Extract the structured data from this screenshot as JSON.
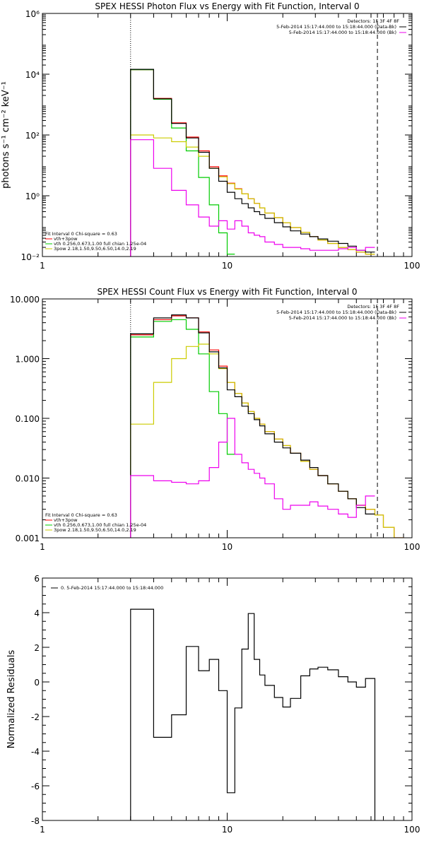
{
  "chart_data": [
    {
      "type": "line",
      "title": "SPEX HESSI Photon Flux vs Energy with Fit Function, Interval 0",
      "ylabel": "photons s⁻¹ cm⁻² keV⁻¹",
      "xlabel": "",
      "xscale": "log",
      "yscale": "log",
      "xlim": [
        1,
        100
      ],
      "ylim": [
        0.01,
        1000000
      ],
      "xticks": [
        1,
        10,
        100
      ],
      "xtick_labels": [
        "1",
        "10",
        "100"
      ],
      "yticks": [
        0.01,
        1,
        100,
        10000,
        1000000
      ],
      "ytick_labels": [
        "10⁻²",
        "10⁰",
        "10²",
        "10⁴",
        "10⁶"
      ],
      "vlines": [
        {
          "x": 3,
          "style": "dotted"
        },
        {
          "x": 65,
          "style": "dashed"
        }
      ],
      "legend_right": [
        "Detectors: 1F 3F 4F 8F",
        "5-Feb-2014 15:17:44.000 to 15:18:44.000 (Data-Bk)",
        "5-Feb-2014 15:17:44.000 to 15:18:44.000 (Bk)"
      ],
      "legend_left": [
        "Fit Interval 0   Chi-square = 0.63",
        "vth+3pow",
        "vth 0.256,0.673,1.00  full chian 1.25e-04",
        "3pow 2.18,1.50,9.50,6.50,14.0,2.19"
      ],
      "series": [
        {
          "name": "vth+3pow",
          "color": "#ff0000",
          "edges": [
            3,
            4,
            5,
            6,
            7,
            8,
            9,
            10,
            11,
            12,
            13,
            14,
            15,
            16,
            18,
            20,
            22,
            25,
            28,
            31,
            35,
            40,
            45,
            50,
            56,
            63
          ],
          "values": [
            14000,
            1600,
            250,
            85,
            30,
            9,
            4.5,
            2.6,
            1.7,
            1.15,
            0.8,
            0.56,
            0.4,
            0.27,
            0.19,
            0.13,
            0.09,
            0.062,
            0.045,
            0.035,
            0.027,
            0.02,
            0.017,
            0.014,
            0.012
          ]
        },
        {
          "name": "vth",
          "color": "#00cc00",
          "edges": [
            3,
            4,
            5,
            6,
            7,
            8,
            9,
            10,
            11
          ],
          "values": [
            14000,
            1500,
            170,
            30,
            4,
            0.5,
            0.06,
            0.012
          ]
        },
        {
          "name": "3pow",
          "color": "#cccc00",
          "edges": [
            3,
            4,
            5,
            6,
            7,
            8,
            9,
            10,
            11,
            12,
            13,
            14,
            15,
            16,
            18,
            20,
            22,
            25,
            28,
            31,
            35,
            40,
            45,
            50,
            56,
            63
          ],
          "values": [
            100,
            80,
            60,
            40,
            20,
            8,
            4.2,
            2.5,
            1.65,
            1.15,
            0.8,
            0.56,
            0.4,
            0.27,
            0.19,
            0.13,
            0.09,
            0.062,
            0.045,
            0.035,
            0.027,
            0.02,
            0.017,
            0.014,
            0.012
          ]
        },
        {
          "name": "Data-Bk",
          "color": "#000000",
          "edges": [
            3,
            4,
            5,
            6,
            7,
            8,
            9,
            10,
            11,
            12,
            13,
            14,
            15,
            16,
            18,
            20,
            22,
            25,
            28,
            31,
            35,
            40,
            45,
            50,
            56,
            63
          ],
          "values": [
            14500,
            1550,
            240,
            80,
            27,
            8,
            3,
            1.3,
            0.8,
            0.55,
            0.4,
            0.3,
            0.24,
            0.18,
            0.13,
            0.095,
            0.07,
            0.055,
            0.045,
            0.038,
            0.032,
            0.027,
            0.022,
            0.016,
            0.014
          ]
        },
        {
          "name": "Bk",
          "color": "#ee00ee",
          "edges": [
            3,
            4,
            5,
            6,
            7,
            8,
            9,
            10,
            11,
            12,
            13,
            14,
            15,
            16,
            18,
            20,
            22,
            25,
            28,
            31,
            35,
            40,
            45,
            50,
            56,
            63
          ],
          "values": [
            70,
            8,
            1.5,
            0.5,
            0.2,
            0.1,
            0.15,
            0.08,
            0.15,
            0.1,
            0.06,
            0.05,
            0.045,
            0.03,
            0.025,
            0.02,
            0.02,
            0.018,
            0.016,
            0.016,
            0.016,
            0.018,
            0.02,
            0.016,
            0.02
          ]
        }
      ]
    },
    {
      "type": "line",
      "title": "SPEX HESSI Count Flux vs Energy with Fit Function, Interval 0",
      "ylabel": "",
      "xlabel": "",
      "xscale": "log",
      "yscale": "log",
      "xlim": [
        1,
        100
      ],
      "ylim": [
        0.001,
        10
      ],
      "xticks": [
        1,
        10,
        100
      ],
      "xtick_labels": [
        "1",
        "10",
        "100"
      ],
      "yticks": [
        0.001,
        0.01,
        0.1,
        1,
        10
      ],
      "ytick_labels": [
        "0.001",
        "0.010",
        "0.100",
        "1.000",
        "10.000"
      ],
      "vlines": [
        {
          "x": 3,
          "style": "dotted"
        },
        {
          "x": 65,
          "style": "dashed"
        }
      ],
      "legend_right": [
        "Detectors: 1F 3F 4F 8F",
        "5-Feb-2014 15:17:44.000 to 15:18:44.000 (Data-Bk)",
        "5-Feb-2014 15:17:44.000 to 15:18:44.000 (Bk)"
      ],
      "legend_left": [
        "Fit Interval 0   Chi-square = 0.63",
        "vth+3pow",
        "vth 0.256,0.673,1.00  full chian 1.25e-04",
        "3pow 2.18,1.50,9.50,6.50,14.0,2.19"
      ],
      "series": [
        {
          "name": "vth+3pow",
          "color": "#ff0000",
          "edges": [
            3,
            4,
            5,
            6,
            7,
            8,
            9,
            10,
            11,
            12,
            13,
            14,
            15,
            16,
            18,
            20,
            22,
            25,
            28,
            31,
            35,
            40,
            45,
            50,
            56,
            63,
            70,
            80,
            90
          ],
          "values": [
            2.5,
            4.5,
            5.2,
            4.8,
            2.8,
            1.4,
            0.75,
            0.4,
            0.26,
            0.18,
            0.13,
            0.1,
            0.08,
            0.06,
            0.045,
            0.035,
            0.026,
            0.019,
            0.014,
            0.011,
            0.008,
            0.006,
            0.0045,
            0.0035,
            0.003,
            0.0024,
            0.0015,
            0.001
          ]
        },
        {
          "name": "vth",
          "color": "#00cc00",
          "edges": [
            3,
            4,
            5,
            6,
            7,
            8,
            9,
            10,
            11
          ],
          "values": [
            2.3,
            4.2,
            4.5,
            3.1,
            1.2,
            0.28,
            0.12,
            0.025
          ]
        },
        {
          "name": "3pow",
          "color": "#cccc00",
          "edges": [
            3,
            4,
            5,
            6,
            7,
            8,
            9,
            10,
            11,
            12,
            13,
            14,
            15,
            16,
            18,
            20,
            22,
            25,
            28,
            31,
            35,
            40,
            45,
            50,
            56,
            63,
            70,
            80,
            90
          ],
          "values": [
            0.08,
            0.4,
            1.0,
            1.6,
            1.75,
            1.2,
            0.68,
            0.4,
            0.26,
            0.18,
            0.13,
            0.1,
            0.08,
            0.06,
            0.045,
            0.035,
            0.026,
            0.019,
            0.014,
            0.011,
            0.008,
            0.006,
            0.0045,
            0.0035,
            0.003,
            0.0024,
            0.0015,
            0.001
          ]
        },
        {
          "name": "Data-Bk",
          "color": "#000000",
          "edges": [
            3,
            4,
            5,
            6,
            7,
            8,
            9,
            10,
            11,
            12,
            13,
            14,
            15,
            16,
            18,
            20,
            22,
            25,
            28,
            31,
            35,
            40,
            45,
            50,
            56,
            63
          ],
          "values": [
            2.6,
            4.8,
            5.4,
            4.8,
            2.7,
            1.3,
            0.7,
            0.3,
            0.23,
            0.16,
            0.12,
            0.095,
            0.075,
            0.055,
            0.04,
            0.032,
            0.026,
            0.02,
            0.015,
            0.011,
            0.008,
            0.006,
            0.0045,
            0.0032,
            0.0025
          ]
        },
        {
          "name": "Bk",
          "color": "#ee00ee",
          "edges": [
            3,
            4,
            5,
            6,
            7,
            8,
            9,
            10,
            11,
            12,
            13,
            14,
            15,
            16,
            18,
            20,
            22,
            25,
            28,
            31,
            35,
            40,
            45,
            50,
            56,
            63
          ],
          "values": [
            0.011,
            0.009,
            0.0085,
            0.008,
            0.009,
            0.015,
            0.04,
            0.1,
            0.025,
            0.018,
            0.014,
            0.012,
            0.01,
            0.008,
            0.0045,
            0.003,
            0.0035,
            0.0035,
            0.004,
            0.0034,
            0.003,
            0.0025,
            0.0022,
            0.0035,
            0.005
          ]
        }
      ]
    },
    {
      "type": "line",
      "title": "",
      "ylabel": "Normalized Residuals",
      "xlabel": "",
      "xscale": "log",
      "yscale": "linear",
      "xlim": [
        1,
        100
      ],
      "ylim": [
        -8,
        6
      ],
      "xticks": [
        1,
        10,
        100
      ],
      "xtick_labels": [
        "1",
        "10",
        "100"
      ],
      "yticks": [
        -8,
        -6,
        -4,
        -2,
        0,
        2,
        4,
        6
      ],
      "ytick_labels": [
        "-8",
        "-6",
        "-4",
        "-2",
        "0",
        "2",
        "4",
        "6"
      ],
      "legend_left": [
        "0. 5-Feb-2014 15:17:44.000 to 15:18:44.000"
      ],
      "series": [
        {
          "name": "0. 5-Feb-2014 15:17:44.000 to 15:18:44.000",
          "color": "#000000",
          "edges": [
            3,
            4,
            5,
            6,
            7,
            8,
            9,
            10,
            11,
            12,
            13,
            14,
            15,
            16,
            18,
            20,
            22,
            25,
            28,
            31,
            35,
            40,
            45,
            50,
            56,
            63
          ],
          "values": [
            4.2,
            -3.2,
            -1.9,
            2.05,
            0.65,
            1.3,
            -0.5,
            -6.4,
            -1.5,
            1.9,
            3.95,
            1.3,
            0.4,
            -0.2,
            -0.9,
            -1.45,
            -0.95,
            0.35,
            0.75,
            0.85,
            0.7,
            0.3,
            0,
            -0.3,
            0.2
          ],
          "drop_to_bottom_ends": true
        }
      ]
    }
  ]
}
